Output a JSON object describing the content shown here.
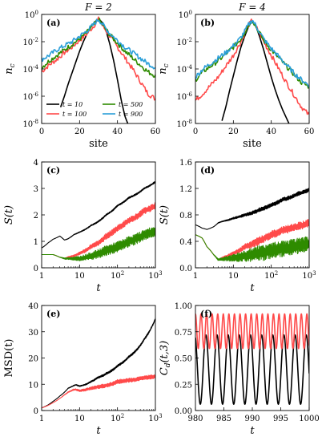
{
  "chart_data": [
    {
      "id": "a",
      "type": "line",
      "panel_label": "(a)",
      "title": "F = 2",
      "xlabel": "site",
      "ylabel": "n_c",
      "xlim": [
        0,
        60
      ],
      "ylim_log10": [
        -8,
        0
      ],
      "y_scale": "log",
      "xticks": [
        "0",
        "20",
        "40",
        "60"
      ],
      "yticks": [
        "10^0",
        "10^-2",
        "10^-4",
        "10^-6",
        "10^-8"
      ],
      "legend": {
        "placement": "lower-left",
        "entries": [
          "t = 10",
          "t = 100",
          "t = 500",
          "t = 900"
        ]
      },
      "series": [
        {
          "name": "t = 10",
          "color": "#000000",
          "x": [
            10,
            12,
            14,
            16,
            18,
            20,
            22,
            24,
            26,
            28,
            30,
            32,
            34,
            36,
            38,
            40,
            42,
            44,
            46
          ],
          "log10y": [
            -6.8,
            -6.0,
            -5.1,
            -4.3,
            -3.5,
            -2.7,
            -2.0,
            -1.4,
            -0.9,
            -0.55,
            -0.3,
            -0.6,
            -1.2,
            -2.2,
            -3.4,
            -4.8,
            -6.3,
            -7.5,
            -8.2
          ]
        },
        {
          "name": "t = 100",
          "color": "#ff4a4a",
          "x": [
            0,
            4,
            8,
            12,
            16,
            20,
            24,
            28,
            30,
            32,
            36,
            40,
            44,
            48,
            52,
            56,
            60
          ],
          "log10y": [
            -4.2,
            -3.7,
            -3.3,
            -2.8,
            -2.4,
            -1.9,
            -1.4,
            -0.75,
            -0.35,
            -0.8,
            -1.6,
            -2.4,
            -3.2,
            -4.0,
            -4.9,
            -5.8,
            -6.2
          ]
        },
        {
          "name": "t = 500",
          "color": "#2e8b00",
          "x": [
            0,
            4,
            8,
            12,
            16,
            20,
            24,
            28,
            30,
            32,
            36,
            40,
            44,
            48,
            52,
            56,
            60
          ],
          "log10y": [
            -3.9,
            -3.4,
            -3.0,
            -2.6,
            -2.2,
            -1.8,
            -1.3,
            -0.7,
            -0.35,
            -0.75,
            -1.5,
            -2.1,
            -2.7,
            -3.2,
            -3.7,
            -4.2,
            -4.5
          ]
        },
        {
          "name": "t = 900",
          "color": "#2b9fd9",
          "x": [
            0,
            4,
            8,
            12,
            16,
            20,
            24,
            28,
            30,
            32,
            36,
            40,
            44,
            48,
            52,
            56,
            60
          ],
          "log10y": [
            -3.3,
            -3.0,
            -2.6,
            -2.3,
            -2.0,
            -1.6,
            -1.2,
            -0.65,
            -0.35,
            -0.7,
            -1.4,
            -1.9,
            -2.4,
            -2.8,
            -3.2,
            -3.6,
            -3.9
          ]
        }
      ]
    },
    {
      "id": "b",
      "type": "line",
      "panel_label": "(b)",
      "title": "F = 4",
      "xlabel": "site",
      "ylabel": "n_c",
      "xlim": [
        0,
        60
      ],
      "ylim_log10": [
        -8,
        0
      ],
      "y_scale": "log",
      "xticks": [
        "0",
        "20",
        "40",
        "60"
      ],
      "yticks": [
        "10^0",
        "10^-2",
        "10^-4",
        "10^-6",
        "10^-8"
      ],
      "series": [
        {
          "name": "t = 10",
          "color": "#000000",
          "x": [
            14,
            16,
            18,
            20,
            22,
            24,
            26,
            28,
            30,
            32,
            34,
            36,
            38,
            40,
            42,
            44,
            46,
            48,
            50
          ],
          "log10y": [
            -7.8,
            -6.8,
            -5.6,
            -4.5,
            -3.4,
            -2.4,
            -1.6,
            -0.9,
            -0.45,
            -0.9,
            -1.7,
            -2.6,
            -3.6,
            -4.6,
            -5.5,
            -6.3,
            -7.0,
            -7.6,
            -8.2
          ]
        },
        {
          "name": "t = 100",
          "color": "#ff4a4a",
          "x": [
            0,
            4,
            8,
            12,
            16,
            20,
            24,
            28,
            30,
            32,
            36,
            40,
            44,
            48,
            52,
            56,
            60
          ],
          "log10y": [
            -6.3,
            -5.8,
            -5.2,
            -4.6,
            -3.8,
            -3.0,
            -2.0,
            -0.8,
            -0.4,
            -0.9,
            -2.0,
            -3.0,
            -4.0,
            -5.0,
            -5.9,
            -6.8,
            -7.4
          ]
        },
        {
          "name": "t = 500",
          "color": "#2e8b00",
          "x": [
            0,
            4,
            8,
            12,
            16,
            20,
            24,
            28,
            30,
            32,
            36,
            40,
            44,
            48,
            52,
            56,
            60
          ],
          "log10y": [
            -4.8,
            -4.2,
            -3.8,
            -3.4,
            -2.9,
            -2.4,
            -1.8,
            -0.8,
            -0.4,
            -0.9,
            -1.9,
            -2.6,
            -3.2,
            -3.8,
            -4.4,
            -5.0,
            -5.3
          ]
        },
        {
          "name": "t = 900",
          "color": "#2b9fd9",
          "x": [
            0,
            4,
            8,
            12,
            16,
            20,
            24,
            28,
            30,
            32,
            36,
            40,
            44,
            48,
            52,
            56,
            60
          ],
          "log10y": [
            -4.6,
            -4.0,
            -3.6,
            -3.2,
            -2.8,
            -2.3,
            -1.7,
            -0.75,
            -0.4,
            -0.85,
            -1.8,
            -2.5,
            -3.1,
            -3.7,
            -4.3,
            -4.8,
            -5.2
          ]
        }
      ]
    },
    {
      "id": "c",
      "type": "line",
      "panel_label": "(c)",
      "xlabel": "t",
      "ylabel": "S(t)",
      "x_scale": "log",
      "xlim": [
        1,
        1000
      ],
      "ylim": [
        0,
        4
      ],
      "xticks": [
        "1",
        "10",
        "10^2",
        "10^3"
      ],
      "yticks": [
        "0",
        "1",
        "2",
        "3",
        "4"
      ],
      "series": [
        {
          "name": "",
          "color": "#000000",
          "band": 0.03,
          "x": [
            1,
            1.5,
            2,
            3,
            4,
            5,
            7,
            10,
            20,
            50,
            100,
            200,
            500,
            1000
          ],
          "y": [
            0.75,
            0.95,
            1.08,
            1.2,
            1.05,
            1.1,
            1.25,
            1.35,
            1.6,
            2.0,
            2.35,
            2.65,
            3.0,
            3.25
          ]
        },
        {
          "name": "",
          "color": "#ff4a4a",
          "band": 0.12,
          "x": [
            1,
            1.5,
            2,
            3,
            4,
            5,
            7,
            10,
            20,
            50,
            100,
            200,
            500,
            1000
          ],
          "y": [
            0.5,
            0.5,
            0.5,
            0.4,
            0.35,
            0.4,
            0.45,
            0.55,
            0.8,
            1.2,
            1.5,
            1.8,
            2.15,
            2.35
          ]
        },
        {
          "name": "",
          "color": "#2e8b00",
          "band": 0.2,
          "x": [
            1,
            1.5,
            2,
            3,
            4,
            5,
            7,
            10,
            20,
            50,
            100,
            200,
            500,
            1000
          ],
          "y": [
            0.5,
            0.5,
            0.5,
            0.4,
            0.35,
            0.35,
            0.35,
            0.35,
            0.45,
            0.65,
            0.8,
            1.0,
            1.25,
            1.4
          ]
        }
      ]
    },
    {
      "id": "d",
      "type": "line",
      "panel_label": "(d)",
      "xlabel": "t",
      "ylabel": "S(t)",
      "x_scale": "log",
      "xlim": [
        1,
        1000
      ],
      "ylim": [
        0,
        1.6
      ],
      "xticks": [
        "1",
        "10",
        "10^2",
        "10^3"
      ],
      "yticks": [
        "0.0",
        "0.4",
        "0.8",
        "1.2",
        "1.6"
      ],
      "series": [
        {
          "name": "",
          "color": "#000000",
          "band": 0.03,
          "x": [
            1,
            1.5,
            2,
            3,
            4,
            5,
            7,
            10,
            20,
            50,
            100,
            200,
            500,
            1000
          ],
          "y": [
            0.65,
            0.6,
            0.58,
            0.62,
            0.68,
            0.7,
            0.72,
            0.75,
            0.8,
            0.88,
            0.95,
            1.03,
            1.12,
            1.18
          ]
        },
        {
          "name": "",
          "color": "#ff4a4a",
          "band": 0.06,
          "x": [
            1,
            1.5,
            2,
            3,
            4,
            5,
            7,
            10,
            20,
            50,
            100,
            200,
            500,
            1000
          ],
          "y": [
            0.5,
            0.45,
            0.32,
            0.2,
            0.12,
            0.15,
            0.18,
            0.22,
            0.32,
            0.42,
            0.5,
            0.57,
            0.63,
            0.68
          ]
        },
        {
          "name": "",
          "color": "#2e8b00",
          "band": 0.12,
          "x": [
            1,
            1.5,
            2,
            3,
            4,
            5,
            7,
            10,
            20,
            50,
            100,
            200,
            500,
            1000
          ],
          "y": [
            0.5,
            0.45,
            0.32,
            0.2,
            0.12,
            0.13,
            0.14,
            0.15,
            0.18,
            0.22,
            0.26,
            0.29,
            0.33,
            0.36
          ]
        }
      ]
    },
    {
      "id": "e",
      "type": "line",
      "panel_label": "(e)",
      "xlabel": "t",
      "ylabel": "MSD(t)",
      "x_scale": "log",
      "xlim": [
        1,
        1000
      ],
      "ylim": [
        0,
        40
      ],
      "xticks": [
        "1",
        "10",
        "10^2",
        "10^3"
      ],
      "yticks": [
        "0",
        "10",
        "20",
        "30",
        "40"
      ],
      "series": [
        {
          "name": "",
          "color": "#000000",
          "band": 0.4,
          "x": [
            1,
            1.5,
            2,
            3,
            4,
            5,
            7,
            8,
            10,
            15,
            20,
            30,
            50,
            100,
            200,
            500,
            1000
          ],
          "y": [
            1,
            2.2,
            3.5,
            5.5,
            7,
            8.5,
            9.5,
            9.8,
            9.3,
            10,
            11,
            12.5,
            14,
            17,
            20.5,
            27,
            35
          ]
        },
        {
          "name": "",
          "color": "#ff4a4a",
          "band": 0.8,
          "x": [
            1,
            1.5,
            2,
            3,
            4,
            5,
            7,
            8,
            10,
            15,
            20,
            30,
            50,
            100,
            200,
            500,
            1000
          ],
          "y": [
            1,
            2.0,
            3.0,
            4.6,
            6,
            7,
            8,
            8,
            7.5,
            8,
            8.5,
            9,
            9.5,
            11,
            11.5,
            12.5,
            13
          ]
        }
      ]
    },
    {
      "id": "f",
      "type": "line",
      "panel_label": "(f)",
      "xlabel": "t",
      "ylabel": "C_d(t,3)",
      "xlim": [
        980,
        1000
      ],
      "ylim": [
        0,
        1
      ],
      "xticks": [
        "980",
        "985",
        "990",
        "995",
        "1000"
      ],
      "yticks": [
        "0.00",
        "0.25",
        "0.50",
        "0.75",
        "1.00"
      ],
      "series": [
        {
          "name": "",
          "color": "#000000",
          "kind": "oscillation",
          "center": 0.39,
          "amplitude": 0.33,
          "period": 1.96,
          "phase": 0.4
        },
        {
          "name": "",
          "color": "#ff4a4a",
          "kind": "oscillation",
          "center": 0.755,
          "amplitude": 0.165,
          "period": 0.98,
          "phase": 0.0
        }
      ]
    }
  ]
}
